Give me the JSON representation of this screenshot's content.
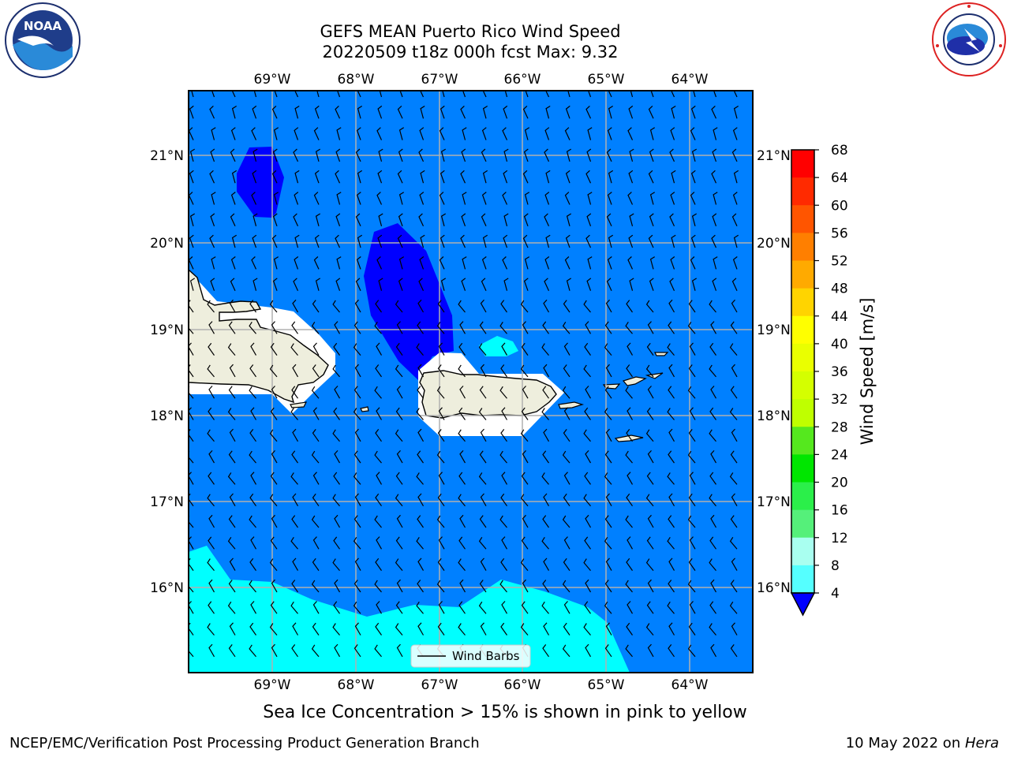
{
  "title": {
    "line1": "GEFS MEAN Puerto Rico Wind Speed",
    "line2": "20220509 t18z 000h fcst   Max: 9.32"
  },
  "axes": {
    "lon_ticks": [
      "69°W",
      "68°W",
      "67°W",
      "66°W",
      "65°W",
      "64°W"
    ],
    "lat_ticks": [
      "21°N",
      "20°N",
      "19°N",
      "18°N",
      "17°N",
      "16°N"
    ]
  },
  "colorbar": {
    "label": "Wind Speed [m/s]",
    "ticks": [
      "68",
      "64",
      "60",
      "56",
      "52",
      "48",
      "44",
      "40",
      "36",
      "32",
      "28",
      "24",
      "20",
      "16",
      "12",
      "8",
      "4"
    ],
    "colors": [
      "#ff0000",
      "#ff2a00",
      "#ff5500",
      "#ff7f00",
      "#ffaa00",
      "#ffd400",
      "#ffff00",
      "#eaff00",
      "#d4ff00",
      "#bfff00",
      "#55e81e",
      "#00e600",
      "#2bef4a",
      "#55f07a",
      "#a9fff0",
      "#55ffff",
      "#00ffff",
      "#0080ff",
      "#0000ff"
    ],
    "extend_color": "#0000ff"
  },
  "legend": {
    "label": "Wind Barbs"
  },
  "colors": {
    "ocean_fill": "#0080ff",
    "low_wind_fill": "#0000ff",
    "high_wind_fill": "#00ffff",
    "land_fill": "#eeeedd",
    "grid": "#b0b0b0"
  },
  "ice_note": "Sea Ice Concentration > 15% is shown in pink to yellow",
  "footer": {
    "left": "NCEP/EMC/Verification Post Processing Product Generation Branch",
    "right_date": "10 May 2022 on ",
    "right_host": "Hera"
  },
  "logos": {
    "left": "noaa-logo",
    "right": "nws-logo"
  }
}
